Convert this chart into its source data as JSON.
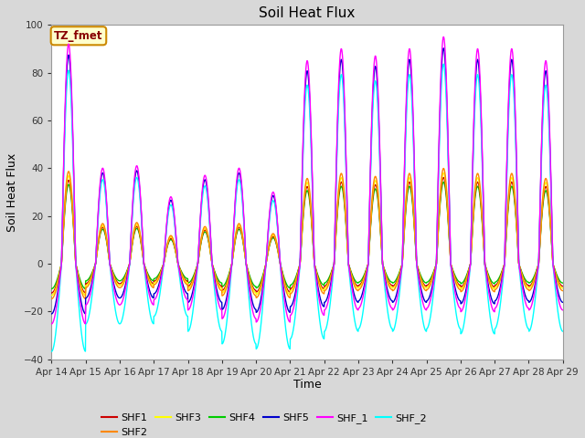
{
  "title": "Soil Heat Flux",
  "xlabel": "Time",
  "ylabel": "Soil Heat Flux",
  "ylim": [
    -40,
    100
  ],
  "n_days": 15,
  "xtick_labels": [
    "Apr 14",
    "Apr 15",
    "Apr 16",
    "Apr 17",
    "Apr 18",
    "Apr 19",
    "Apr 20",
    "Apr 21",
    "Apr 22",
    "Apr 23",
    "Apr 24",
    "Apr 25",
    "Apr 26",
    "Apr 27",
    "Apr 28",
    "Apr 29"
  ],
  "series_colors": {
    "SHF1": "#cc0000",
    "SHF2": "#ff8800",
    "SHF3": "#ffff00",
    "SHF4": "#00cc00",
    "SHF5": "#0000cc",
    "SHF_1": "#ff00ff",
    "SHF_2": "#00ffff"
  },
  "day_peaks_main": [
    92,
    40,
    41,
    28,
    37,
    40,
    30,
    85,
    90,
    87,
    90,
    95,
    90,
    90,
    85
  ],
  "night_depths_main": [
    -35,
    -24,
    -24,
    -21,
    -27,
    -32,
    -34,
    -30,
    -27,
    -26,
    -27,
    -26,
    -28,
    -26,
    -27
  ],
  "annotation_text": "TZ_fmet",
  "bg_color": "#d8d8d8",
  "grid_color": "#ffffff",
  "linewidth": 1.0
}
